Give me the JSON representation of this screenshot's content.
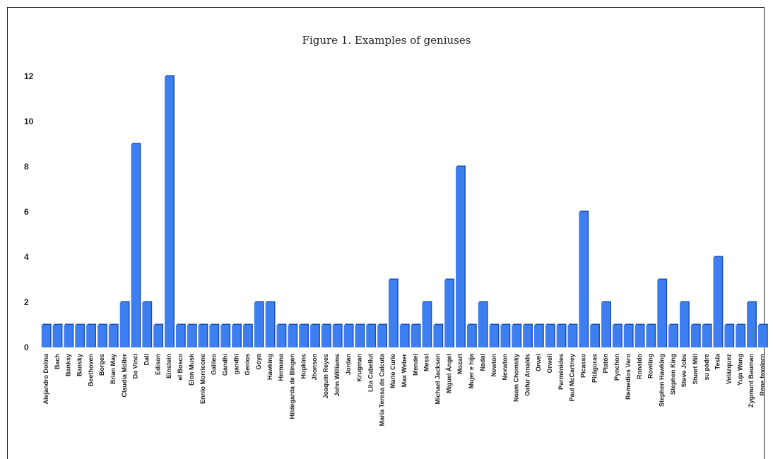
{
  "chart_data": {
    "type": "bar",
    "title": "Figure 1. Examples of geniuses",
    "xlabel": "",
    "ylabel": "",
    "ylim": [
      0,
      12
    ],
    "yticks": [
      0,
      2,
      4,
      6,
      8,
      10,
      12
    ],
    "grid": false,
    "bar_color": "#3d7ff0",
    "categories": [
      "Alejandro Dolina",
      "Bach",
      "Banksy",
      "Bansky",
      "Beethoven",
      "Borges",
      "Brian May",
      "Claudia Möller",
      "Da Vinci",
      "Dali",
      "Edison",
      "Einstein",
      "el Bosco",
      "Elon Musk",
      "Ennio Morricone",
      "Galileo",
      "Gandhi",
      "gandhi",
      "Genios",
      "Goya",
      "Hawking",
      "Hermana",
      "Hildegarda de Bingen",
      "Hopkins",
      "Jhonson",
      "Joaquín Reyes",
      "John Williams",
      "Jordan",
      "Krugman",
      "Lita Cabellut",
      "María Teresa de Calcuta",
      "Marie Curie",
      "Max Weber",
      "Mendel",
      "Messi",
      "Michael Jackson",
      "Miguel Ángel",
      "Mozart",
      "Mujer e hija",
      "Nadal",
      "Newton",
      "Nexwton",
      "Noam Chomsky",
      "Oafur Arnalds",
      "Orwel",
      "Orwell",
      "Parménides",
      "Paul McCartney",
      "Picasso",
      "Pitágoras",
      "Platón",
      "Pynchon",
      "Remedios Varo",
      "Ronaldo",
      "Rowling",
      "Stephen Hawking",
      "Stephen King",
      "Steve Jobs",
      "Stuart Mill",
      "su padre",
      "Tesla",
      "Velázquez",
      "Yuja Wang",
      "Zygmunt Bauman",
      "Rene favaloro"
    ],
    "values": [
      1,
      1,
      1,
      1,
      1,
      1,
      1,
      2,
      9,
      2,
      1,
      12,
      1,
      1,
      1,
      1,
      1,
      1,
      1,
      2,
      2,
      1,
      1,
      1,
      1,
      1,
      1,
      1,
      1,
      1,
      1,
      3,
      1,
      1,
      2,
      1,
      3,
      8,
      1,
      2,
      1,
      1,
      1,
      1,
      1,
      1,
      1,
      1,
      6,
      1,
      2,
      1,
      1,
      1,
      1,
      3,
      1,
      2,
      1,
      1,
      4,
      1,
      1,
      2,
      1
    ]
  }
}
